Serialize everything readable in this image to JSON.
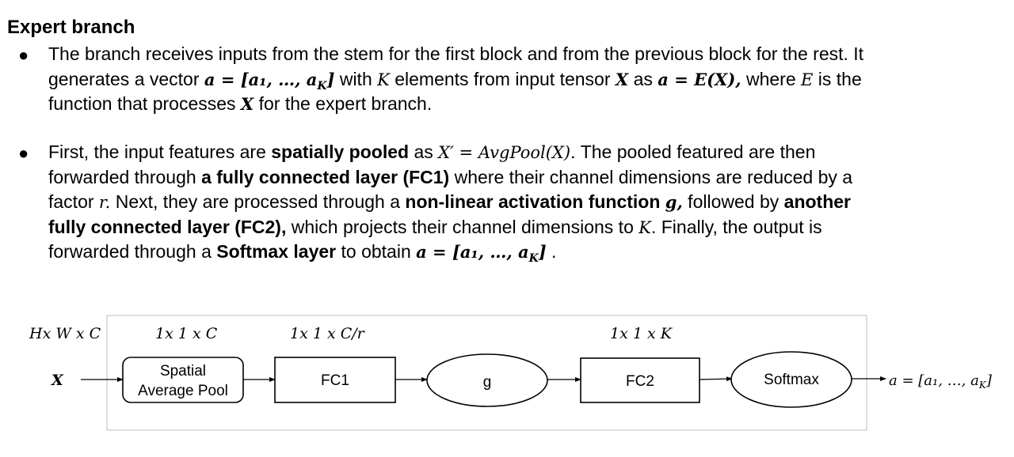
{
  "heading": "Expert branch",
  "bullet_char": "●",
  "b1": {
    "l1": "The branch receives inputs from the stem for the first block and from the previous block for the rest. It",
    "l2_a": "generates a vector ",
    "l2_m1": "a = [a₁, …, a",
    "l2_m1_sub": "K",
    "l2_m1_end": "]",
    "l2_b": " with ",
    "l2_K": "K",
    "l2_c": "  elements from input tensor ",
    "l2_X": "X",
    "l2_d": " as ",
    "l2_m2": "a = E(X),",
    "l2_e": " where ",
    "l2_E": "E",
    "l2_f": " is the",
    "l3_a": "function that processes ",
    "l3_X": "X",
    "l3_b": " for the expert branch."
  },
  "b2": {
    "l1_a": "First, the input features are ",
    "l1_b": "spatially pooled",
    "l1_c": " as  ",
    "l1_m": "X′ = AvgPool(X).",
    "l1_d": " The pooled featured are then",
    "l2_a": "forwarded through ",
    "l2_b": "a fully connected layer (FC1)",
    "l2_c": " where their channel dimensions are reduced by a",
    "l3_a": "factor ",
    "l3_r": "r.",
    "l3_b": " Next,  they are processed through a ",
    "l3_c": "non-linear activation function ",
    "l3_g": "g,",
    "l3_d": "  followed by ",
    "l3_e": "another",
    "l4_a": "fully connected layer (FC2),",
    "l4_b": " which projects their channel dimensions to ",
    "l4_K": "K",
    "l4_c": ". Finally, the output is",
    "l5_a": "forwarded through a ",
    "l5_b": "Softmax layer",
    "l5_c": " to obtain ",
    "l5_m": "a = [a₁, …, a",
    "l5_m_sub": "K",
    "l5_m_end": "]",
    "l5_d": " ."
  },
  "diagram": {
    "dims": [
      "Hx W x C",
      "1x 1 x C",
      "1x 1 x C/r",
      "1x 1 x K"
    ],
    "input_label": "X",
    "nodes": [
      {
        "line1": "Spatial",
        "line2": "Average Pool"
      },
      {
        "line1": "FC1"
      },
      {
        "line1": "g"
      },
      {
        "line1": "FC2"
      },
      {
        "line1": "Softmax"
      }
    ],
    "output_label": "a = [a₁, …, a",
    "output_sub": "K",
    "output_end": "]"
  }
}
